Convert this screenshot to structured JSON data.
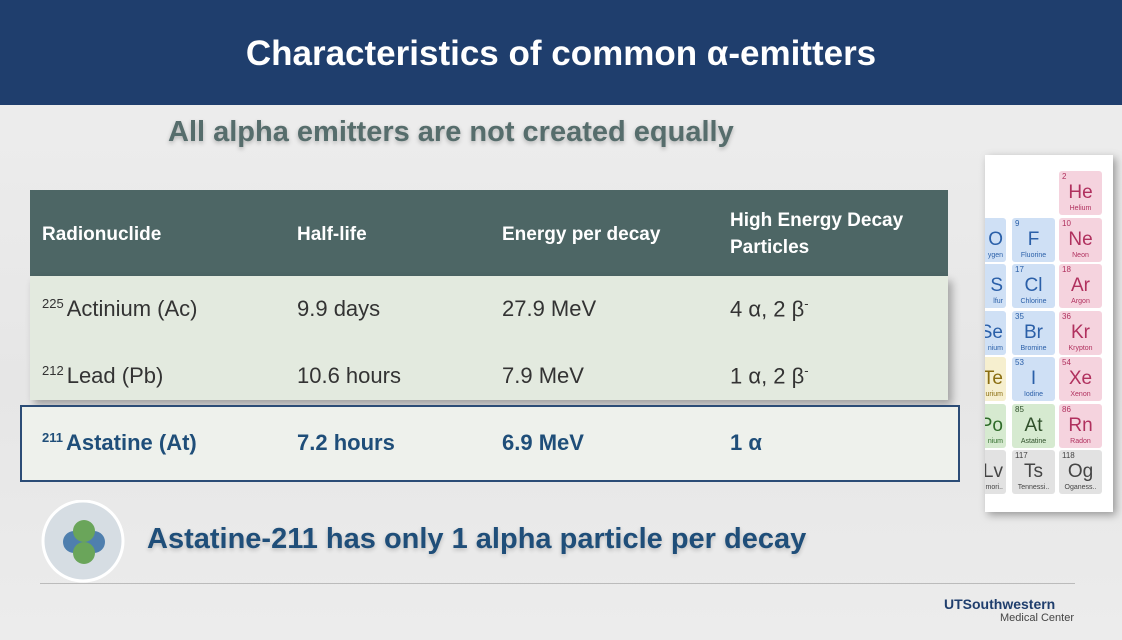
{
  "header": {
    "title": "Characteristics of common α-emitters"
  },
  "subtitle": "All alpha emitters are not created equally",
  "table": {
    "columns": [
      "Radionuclide",
      "Half-life",
      "Energy per decay",
      "High Energy Decay Particles"
    ],
    "rows": [
      {
        "mass": "225",
        "name": "Actinium (Ac)",
        "half_life": "9.9 days",
        "energy": "27.9 MeV",
        "particles": "4 α, 2 β",
        "particles_sup": "-"
      },
      {
        "mass": "212",
        "name": "Lead (Pb)",
        "half_life": "10.6 hours",
        "energy": "7.9 MeV",
        "particles": "1 α, 2 β",
        "particles_sup": "-"
      },
      {
        "mass": "211",
        "name": "Astatine (At)",
        "half_life": "7.2 hours",
        "energy": "6.9 MeV",
        "particles": "1 α"
      }
    ]
  },
  "conclusion": "Astatine-211 has only 1 alpha particle per decay",
  "logo": {
    "name": "UTSouthwestern",
    "subname": "Medical Center"
  },
  "periodic_table": {
    "columns": [
      {
        "cells": [
          {
            "symbol": "O",
            "name": "ygen"
          },
          {
            "symbol": "S",
            "name": "lfur"
          },
          {
            "symbol": "Se",
            "name": "nium"
          },
          {
            "symbol": "Te",
            "name": "urium"
          },
          {
            "symbol": "Po",
            "name": "nium"
          },
          {
            "symbol": "Lv",
            "name": "mori.."
          }
        ]
      },
      {
        "cells": [
          {
            "number": "9",
            "symbol": "F",
            "name": "Fluorine"
          },
          {
            "number": "17",
            "symbol": "Cl",
            "name": "Chlorine"
          },
          {
            "number": "35",
            "symbol": "Br",
            "name": "Bromine"
          },
          {
            "number": "53",
            "symbol": "I",
            "name": "Iodine"
          },
          {
            "number": "85",
            "symbol": "At",
            "name": "Astatine"
          },
          {
            "number": "117",
            "symbol": "Ts",
            "name": "Tennessi.."
          }
        ]
      },
      {
        "cells": [
          {
            "number": "2",
            "symbol": "He",
            "name": "Helium"
          },
          {
            "number": "10",
            "symbol": "Ne",
            "name": "Neon"
          },
          {
            "number": "18",
            "symbol": "Ar",
            "name": "Argon"
          },
          {
            "number": "36",
            "symbol": "Kr",
            "name": "Krypton"
          },
          {
            "number": "54",
            "symbol": "Xe",
            "name": "Xenon"
          },
          {
            "number": "86",
            "symbol": "Rn",
            "name": "Radon"
          },
          {
            "number": "118",
            "symbol": "Og",
            "name": "Oganess.."
          }
        ]
      }
    ]
  }
}
